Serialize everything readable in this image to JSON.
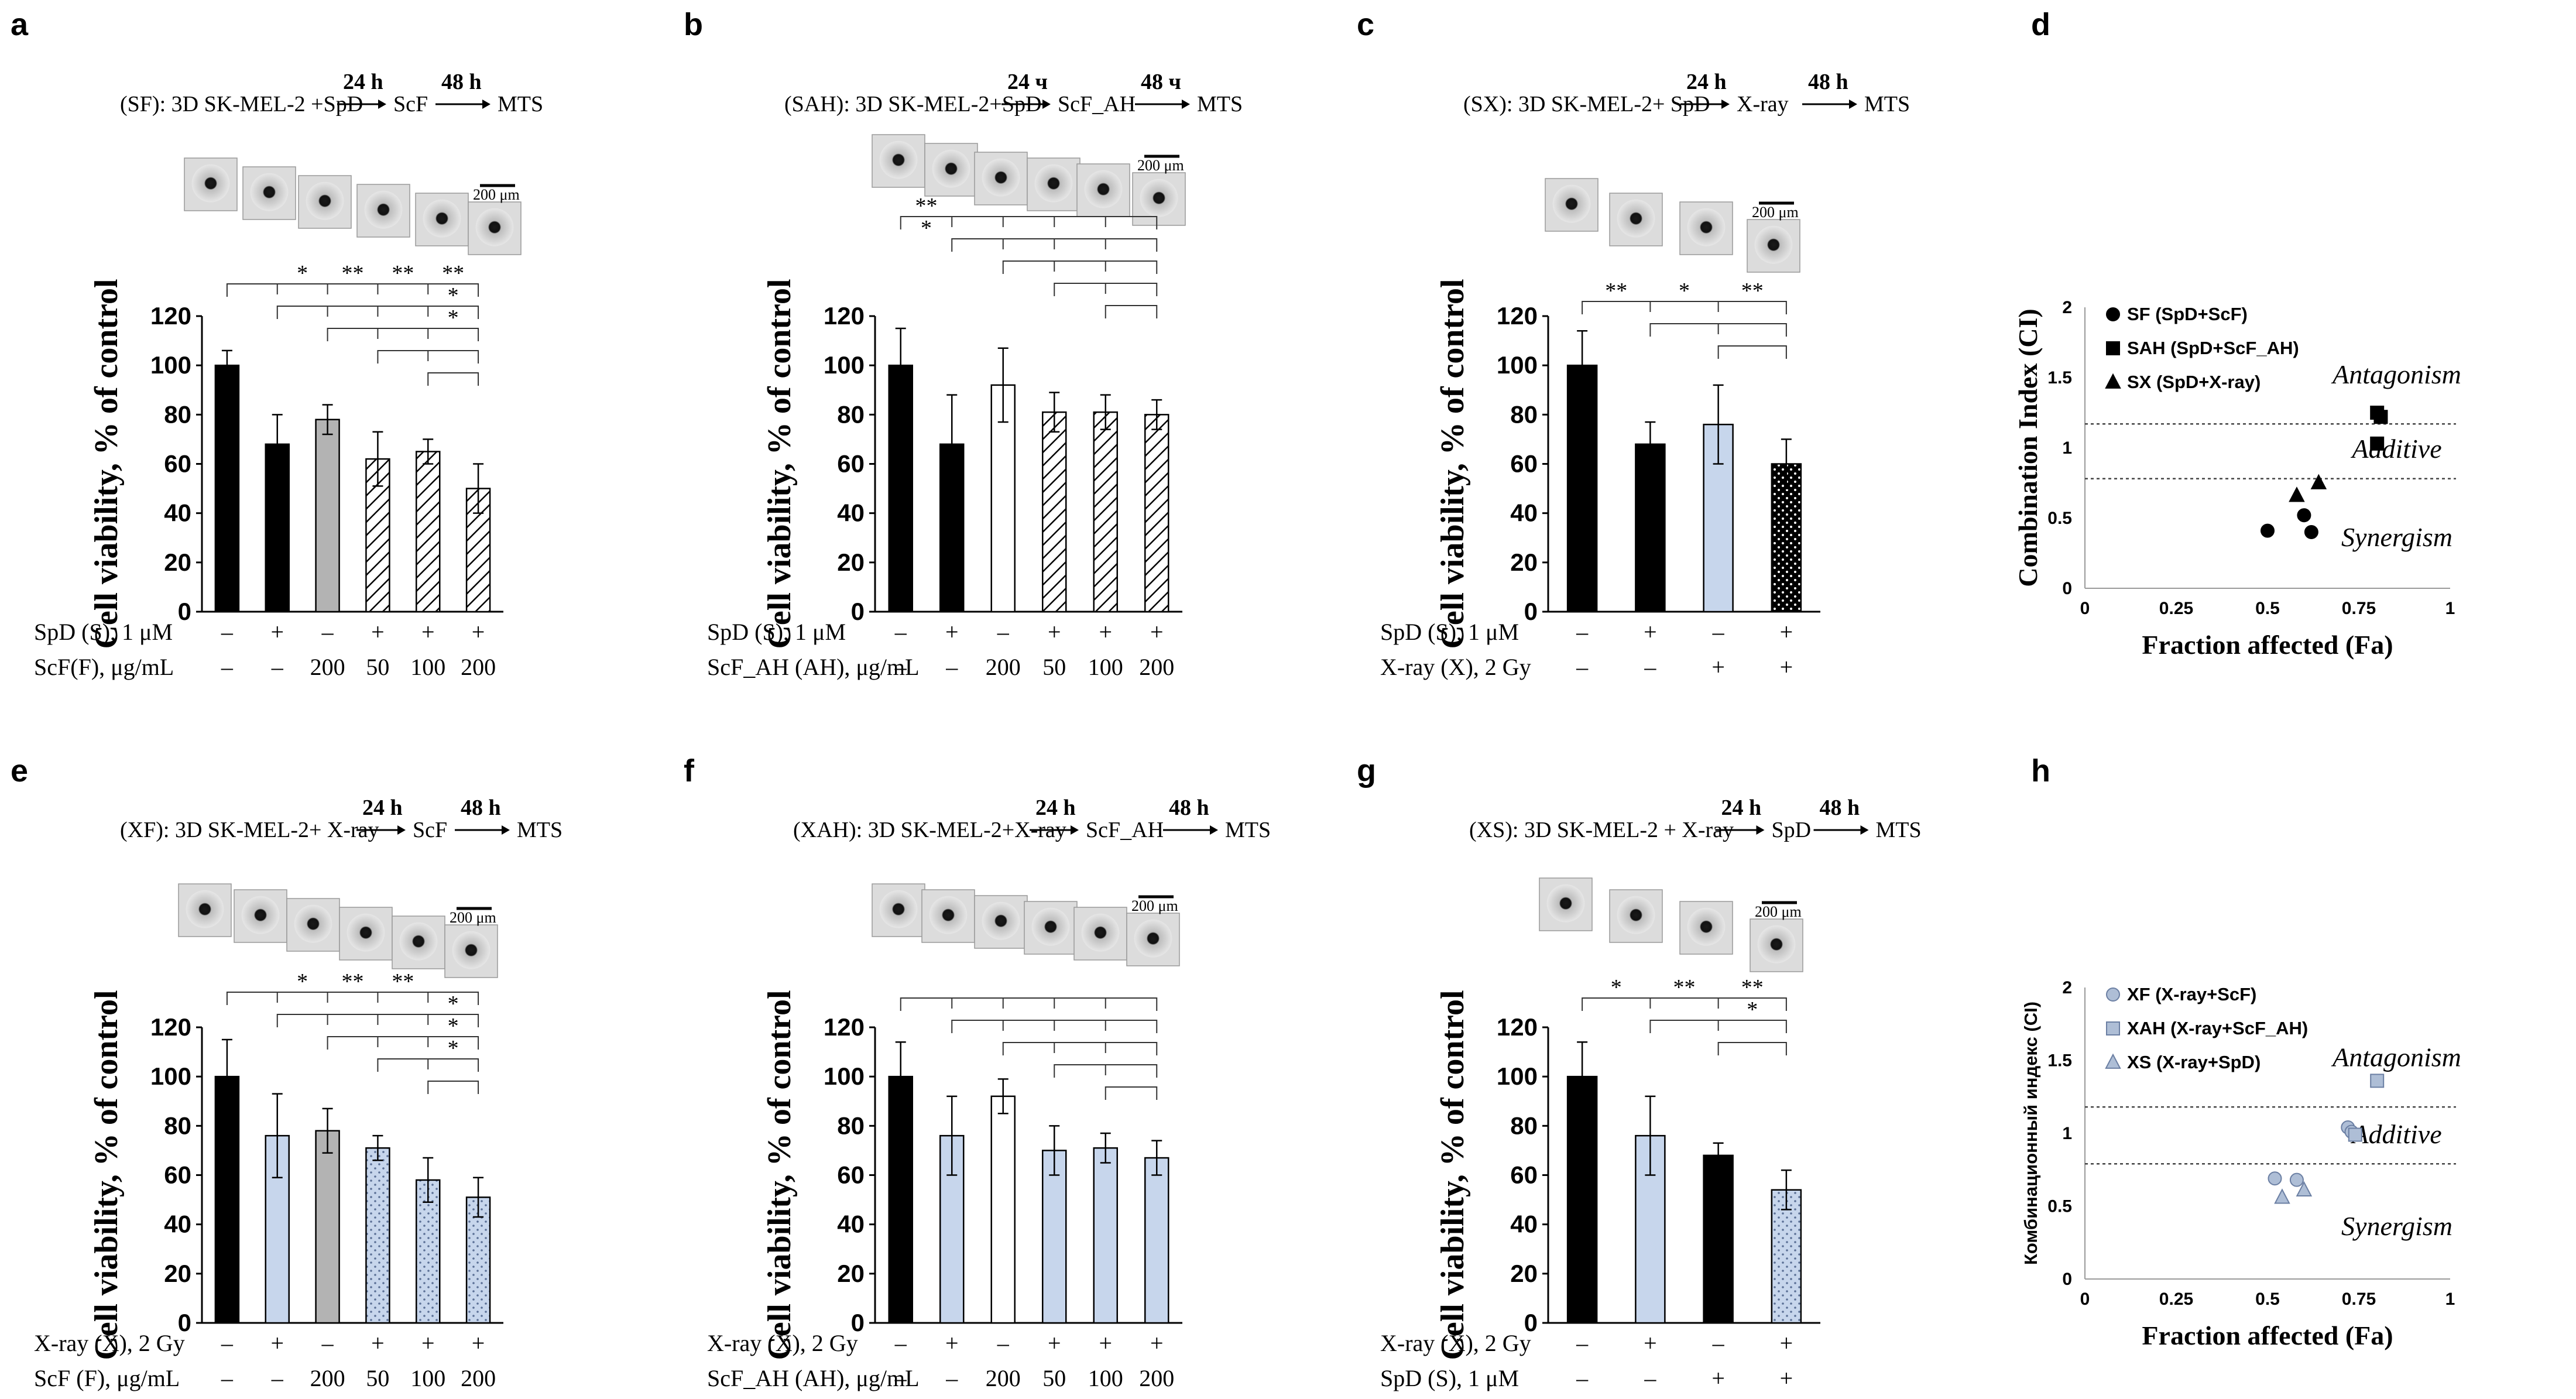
{
  "colors": {
    "black": "#000000",
    "gray": "#b3b3b3",
    "lightblue": "#c7d6ec",
    "white": "#ffffff",
    "dashed": "#444444",
    "ci_marker": "#aebed6"
  },
  "scale_bar_label": "200 μm",
  "chart_data": [
    {
      "type": "bar",
      "panel": "a",
      "title": "(SF): 3D SK-MEL-2 +SpD",
      "scheme": {
        "t1": "24 h",
        "t2": "48 h",
        "s1": "ScF",
        "s2": "MTS"
      },
      "ylabel": "Cell viability, % of control",
      "ylim": [
        0,
        120
      ],
      "yticks": [
        "0",
        "20",
        "40",
        "60",
        "80",
        "100",
        "120"
      ],
      "values": [
        100,
        68,
        78,
        62,
        65,
        50
      ],
      "errors": [
        6,
        12,
        6,
        11,
        5,
        10
      ],
      "bar_styles": [
        "black",
        "black",
        "gray",
        "hatch",
        "hatch",
        "hatch"
      ],
      "rows": [
        {
          "label": "SpD (S), 1 μM",
          "entries": [
            "–",
            "+",
            "–",
            "+",
            "+",
            "+"
          ]
        },
        {
          "label": "ScF(F), μg/mL",
          "entries": [
            "–",
            "–",
            "200",
            "50",
            "100",
            "200"
          ]
        }
      ],
      "sig": [
        "*",
        "**",
        "**",
        "**",
        "*",
        "*"
      ]
    },
    {
      "type": "bar",
      "panel": "b",
      "title": "(SAH): 3D SK-MEL-2+SpD",
      "scheme": {
        "t1": "24 ч",
        "t2": "48 ч",
        "s1": "ScF_AH",
        "s2": "MTS"
      },
      "ylabel": "Cell viability, % of control",
      "ylim": [
        0,
        120
      ],
      "yticks": [
        "0",
        "20",
        "40",
        "60",
        "80",
        "100",
        "120"
      ],
      "values": [
        100,
        68,
        92,
        81,
        81,
        80
      ],
      "errors": [
        15,
        20,
        15,
        8,
        7,
        6
      ],
      "bar_styles": [
        "black",
        "black",
        "white",
        "hatch",
        "hatch",
        "hatch"
      ],
      "rows": [
        {
          "label": "SpD (S), 1 μM",
          "entries": [
            "–",
            "+",
            "–",
            "+",
            "+",
            "+"
          ]
        },
        {
          "label": "ScF_AH (AH), μg/mL",
          "entries": [
            "–",
            "–",
            "200",
            "50",
            "100",
            "200"
          ]
        }
      ],
      "sig": [
        "**",
        "*"
      ]
    },
    {
      "type": "bar",
      "panel": "c",
      "title": "(SX): 3D SK-MEL-2+ SpD",
      "scheme": {
        "t1": "24 h",
        "t2": "48 h",
        "s1": "X-ray",
        "s2": "MTS"
      },
      "ylabel": "Cell viability, % of control",
      "ylim": [
        0,
        120
      ],
      "yticks": [
        "0",
        "20",
        "40",
        "60",
        "80",
        "100",
        "120"
      ],
      "values": [
        100,
        68,
        76,
        60
      ],
      "errors": [
        14,
        9,
        16,
        10
      ],
      "bar_styles": [
        "black",
        "black",
        "lightblue",
        "dots"
      ],
      "rows": [
        {
          "label": "SpD (S), 1 μM",
          "entries": [
            "–",
            "+",
            "–",
            "+"
          ]
        },
        {
          "label": "X-ray (X), 2 Gy",
          "entries": [
            "–",
            "–",
            "+",
            "+"
          ]
        }
      ],
      "sig": [
        "**",
        "*",
        "**"
      ]
    },
    {
      "type": "scatter",
      "panel": "d",
      "xlabel": "Fraction affected (Fa)",
      "ylabel": "Combination Index (CI)",
      "xlim": [
        0,
        1
      ],
      "ylim": [
        0,
        2
      ],
      "xticks": [
        "0",
        "0.25",
        "0.5",
        "0.75",
        "1"
      ],
      "yticks": [
        "0",
        "0.5",
        "1",
        "1.5",
        "2"
      ],
      "series": [
        {
          "name": "SF (SpD+ScF)",
          "marker": "circle",
          "x": [
            0.5,
            0.6,
            0.62
          ],
          "y": [
            0.41,
            0.52,
            0.4
          ]
        },
        {
          "name": "SAH (SpD+ScF_AH)",
          "marker": "square",
          "x": [
            0.8,
            0.81,
            0.8
          ],
          "y": [
            1.25,
            1.22,
            1.03
          ]
        },
        {
          "name": "SX (SpD+X-ray)",
          "marker": "triangle",
          "x": [
            0.58,
            0.64
          ],
          "y": [
            0.66,
            0.75
          ]
        }
      ],
      "dashed_lines": [
        1.17,
        0.78
      ],
      "regions": [
        "Antagonism",
        "Additive",
        "Synergism"
      ]
    },
    {
      "type": "bar",
      "panel": "e",
      "title": "(XF): 3D SK-MEL-2+ X-ray",
      "scheme": {
        "t1": "24 h",
        "t2": "48 h",
        "s1": "ScF",
        "s2": "MTS"
      },
      "ylabel": "Cell viability, % of control",
      "ylim": [
        0,
        120
      ],
      "yticks": [
        "0",
        "20",
        "40",
        "60",
        "80",
        "100",
        "120"
      ],
      "values": [
        100,
        76,
        78,
        71,
        58,
        51
      ],
      "errors": [
        15,
        17,
        9,
        5,
        9,
        8
      ],
      "bar_styles": [
        "black",
        "lightblue",
        "gray",
        "dots",
        "dots",
        "dots"
      ],
      "rows": [
        {
          "label": "X-ray (X), 2 Gy",
          "entries": [
            "–",
            "+",
            "–",
            "+",
            "+",
            "+"
          ]
        },
        {
          "label": "ScF (F), μg/mL",
          "entries": [
            "–",
            "–",
            "200",
            "50",
            "100",
            "200"
          ]
        }
      ],
      "sig": [
        "*",
        "**",
        "**",
        "*",
        "*",
        "*"
      ]
    },
    {
      "type": "bar",
      "panel": "f",
      "title": "(XAH): 3D SK-MEL-2+X-ray",
      "scheme": {
        "t1": "24 h",
        "t2": "48 h",
        "s1": "ScF_AH",
        "s2": "MTS"
      },
      "ylabel": "Cell viability, % of control",
      "ylim": [
        0,
        120
      ],
      "yticks": [
        "0",
        "20",
        "40",
        "60",
        "80",
        "100",
        "120"
      ],
      "values": [
        100,
        76,
        92,
        70,
        71,
        67
      ],
      "errors": [
        14,
        16,
        7,
        10,
        6,
        7
      ],
      "bar_styles": [
        "black",
        "lightblue",
        "white",
        "lightblue",
        "lightblue",
        "lightblue"
      ],
      "rows": [
        {
          "label": "X-ray (X), 2 Gy",
          "entries": [
            "–",
            "+",
            "–",
            "+",
            "+",
            "+"
          ]
        },
        {
          "label": "ScF_AH (AH), μg/mL",
          "entries": [
            "–",
            "–",
            "200",
            "50",
            "100",
            "200"
          ]
        }
      ],
      "sig": []
    },
    {
      "type": "bar",
      "panel": "g",
      "title": "(XS): 3D SK-MEL-2 + X-ray",
      "scheme": {
        "t1": "24 h",
        "t2": "48 h",
        "s1": "SpD",
        "s2": "MTS"
      },
      "ylabel": "Cell viability, % of control",
      "ylim": [
        0,
        120
      ],
      "yticks": [
        "0",
        "20",
        "40",
        "60",
        "80",
        "100",
        "120"
      ],
      "values": [
        100,
        76,
        68,
        54
      ],
      "errors": [
        14,
        16,
        5,
        8
      ],
      "bar_styles": [
        "black",
        "lightblue",
        "black",
        "dots"
      ],
      "rows": [
        {
          "label": "X-ray (X), 2 Gy",
          "entries": [
            "–",
            "+",
            "–",
            "+"
          ]
        },
        {
          "label": "SpD (S), 1 μM",
          "entries": [
            "–",
            "–",
            "+",
            "+"
          ]
        }
      ],
      "sig": [
        "*",
        "**",
        "**",
        "*"
      ]
    },
    {
      "type": "scatter",
      "panel": "h",
      "xlabel": "Fraction affected (Fa)",
      "ylabel": "Комбинационный индекс (CI)",
      "xlim": [
        0,
        1
      ],
      "ylim": [
        0,
        2
      ],
      "xticks": [
        "0",
        "0.25",
        "0.5",
        "0.75",
        "1"
      ],
      "yticks": [
        "0",
        "0.5",
        "1",
        "1.5",
        "2"
      ],
      "series": [
        {
          "name": "XF (X-ray+ScF)",
          "marker": "circle",
          "x": [
            0.52,
            0.58,
            0.72,
            0.73
          ],
          "y": [
            0.69,
            0.68,
            1.04,
            1.01
          ]
        },
        {
          "name": "XAH (X-ray+ScF_AH)",
          "marker": "square",
          "x": [
            0.8,
            0.74
          ],
          "y": [
            1.36,
            0.99
          ]
        },
        {
          "name": "XS (X-ray+SpD)",
          "marker": "triangle",
          "x": [
            0.54,
            0.6
          ],
          "y": [
            0.56,
            0.61
          ]
        }
      ],
      "dashed_lines": [
        1.18,
        0.79
      ],
      "regions": [
        "Antagonism",
        "Additive",
        "Synergism"
      ]
    }
  ]
}
